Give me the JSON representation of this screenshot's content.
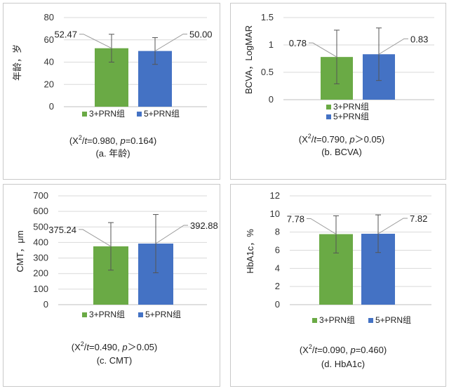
{
  "colors": {
    "group3": "#6aaa45",
    "group5": "#4472c4",
    "axis": "#bfbfbf",
    "grid": "#d9d9d9",
    "error": "#555555"
  },
  "chart_data": [
    {
      "type": "bar",
      "ylabel": "年龄，岁",
      "ylim": [
        0,
        80
      ],
      "ticks": [
        0,
        20,
        40,
        60,
        80
      ],
      "tick_labels": [
        "0",
        "20",
        "40",
        "60",
        "80"
      ],
      "series": [
        {
          "name": "3+PRN组",
          "value": 52.47,
          "value_label": "52.47",
          "err_low": 40.0,
          "err_high": 65.0
        },
        {
          "name": "5+PRN组",
          "value": 50.0,
          "value_label": "50.00",
          "err_low": 38.0,
          "err_high": 62.0
        }
      ],
      "stat_pre": "(X",
      "stat_sup": "2",
      "stat_slash": "/",
      "stat_t": "t",
      "stat_mid": "=0.980,  ",
      "stat_p": "p",
      "stat_post": "=0.164)",
      "caption": "(a. 年龄)"
    },
    {
      "type": "bar",
      "ylabel": "BCVA，LogMAR",
      "ylim": [
        0,
        1.5
      ],
      "ticks": [
        0,
        0.5,
        1,
        1.5
      ],
      "tick_labels": [
        "0",
        "0.5",
        "1",
        "1.5"
      ],
      "series": [
        {
          "name": "3+PRN组",
          "value": 0.78,
          "value_label": "0.78",
          "err_low": 0.29,
          "err_high": 1.27
        },
        {
          "name": "5+PRN组",
          "value": 0.83,
          "value_label": "0.83",
          "err_low": 0.35,
          "err_high": 1.31
        }
      ],
      "stat_pre": "(X",
      "stat_sup": "2",
      "stat_slash": "/",
      "stat_t": "t",
      "stat_mid": "=0.790,  ",
      "stat_p": "p",
      "stat_post": "＞0.05)",
      "caption": "(b. BCVA)"
    },
    {
      "type": "bar",
      "ylabel": "CMT，μm",
      "ylim": [
        0,
        700
      ],
      "ticks": [
        0,
        100,
        200,
        300,
        400,
        500,
        600,
        700
      ],
      "tick_labels": [
        "0",
        "100",
        "200",
        "300",
        "400",
        "500",
        "600",
        "700"
      ],
      "series": [
        {
          "name": "3+PRN组",
          "value": 375.24,
          "value_label": "375.24",
          "err_low": 222,
          "err_high": 528
        },
        {
          "name": "5+PRN组",
          "value": 392.88,
          "value_label": "392.88",
          "err_low": 205,
          "err_high": 580
        }
      ],
      "stat_pre": "(X",
      "stat_sup": "2",
      "stat_slash": "/",
      "stat_t": "t",
      "stat_mid": "=0.490,    ",
      "stat_p": "p",
      "stat_post": "＞0.05)",
      "caption": "(c. CMT)"
    },
    {
      "type": "bar",
      "ylabel": "HbA1c，%",
      "ylim": [
        0,
        12
      ],
      "ticks": [
        0,
        2,
        4,
        6,
        8,
        10,
        12
      ],
      "tick_labels": [
        "0",
        "2",
        "4",
        "6",
        "8",
        "10",
        "12"
      ],
      "series": [
        {
          "name": "3+PRN组",
          "value": 7.78,
          "value_label": "7.78",
          "err_low": 5.7,
          "err_high": 9.8
        },
        {
          "name": "5+PRN组",
          "value": 7.82,
          "value_label": "7.82",
          "err_low": 5.75,
          "err_high": 9.9
        }
      ],
      "stat_pre": "(X",
      "stat_sup": "2",
      "stat_slash": "/",
      "stat_t": "t",
      "stat_mid": "=0.090,   ",
      "stat_p": "p",
      "stat_post": "=0.460)",
      "caption": "(d. HbA1c)"
    }
  ]
}
